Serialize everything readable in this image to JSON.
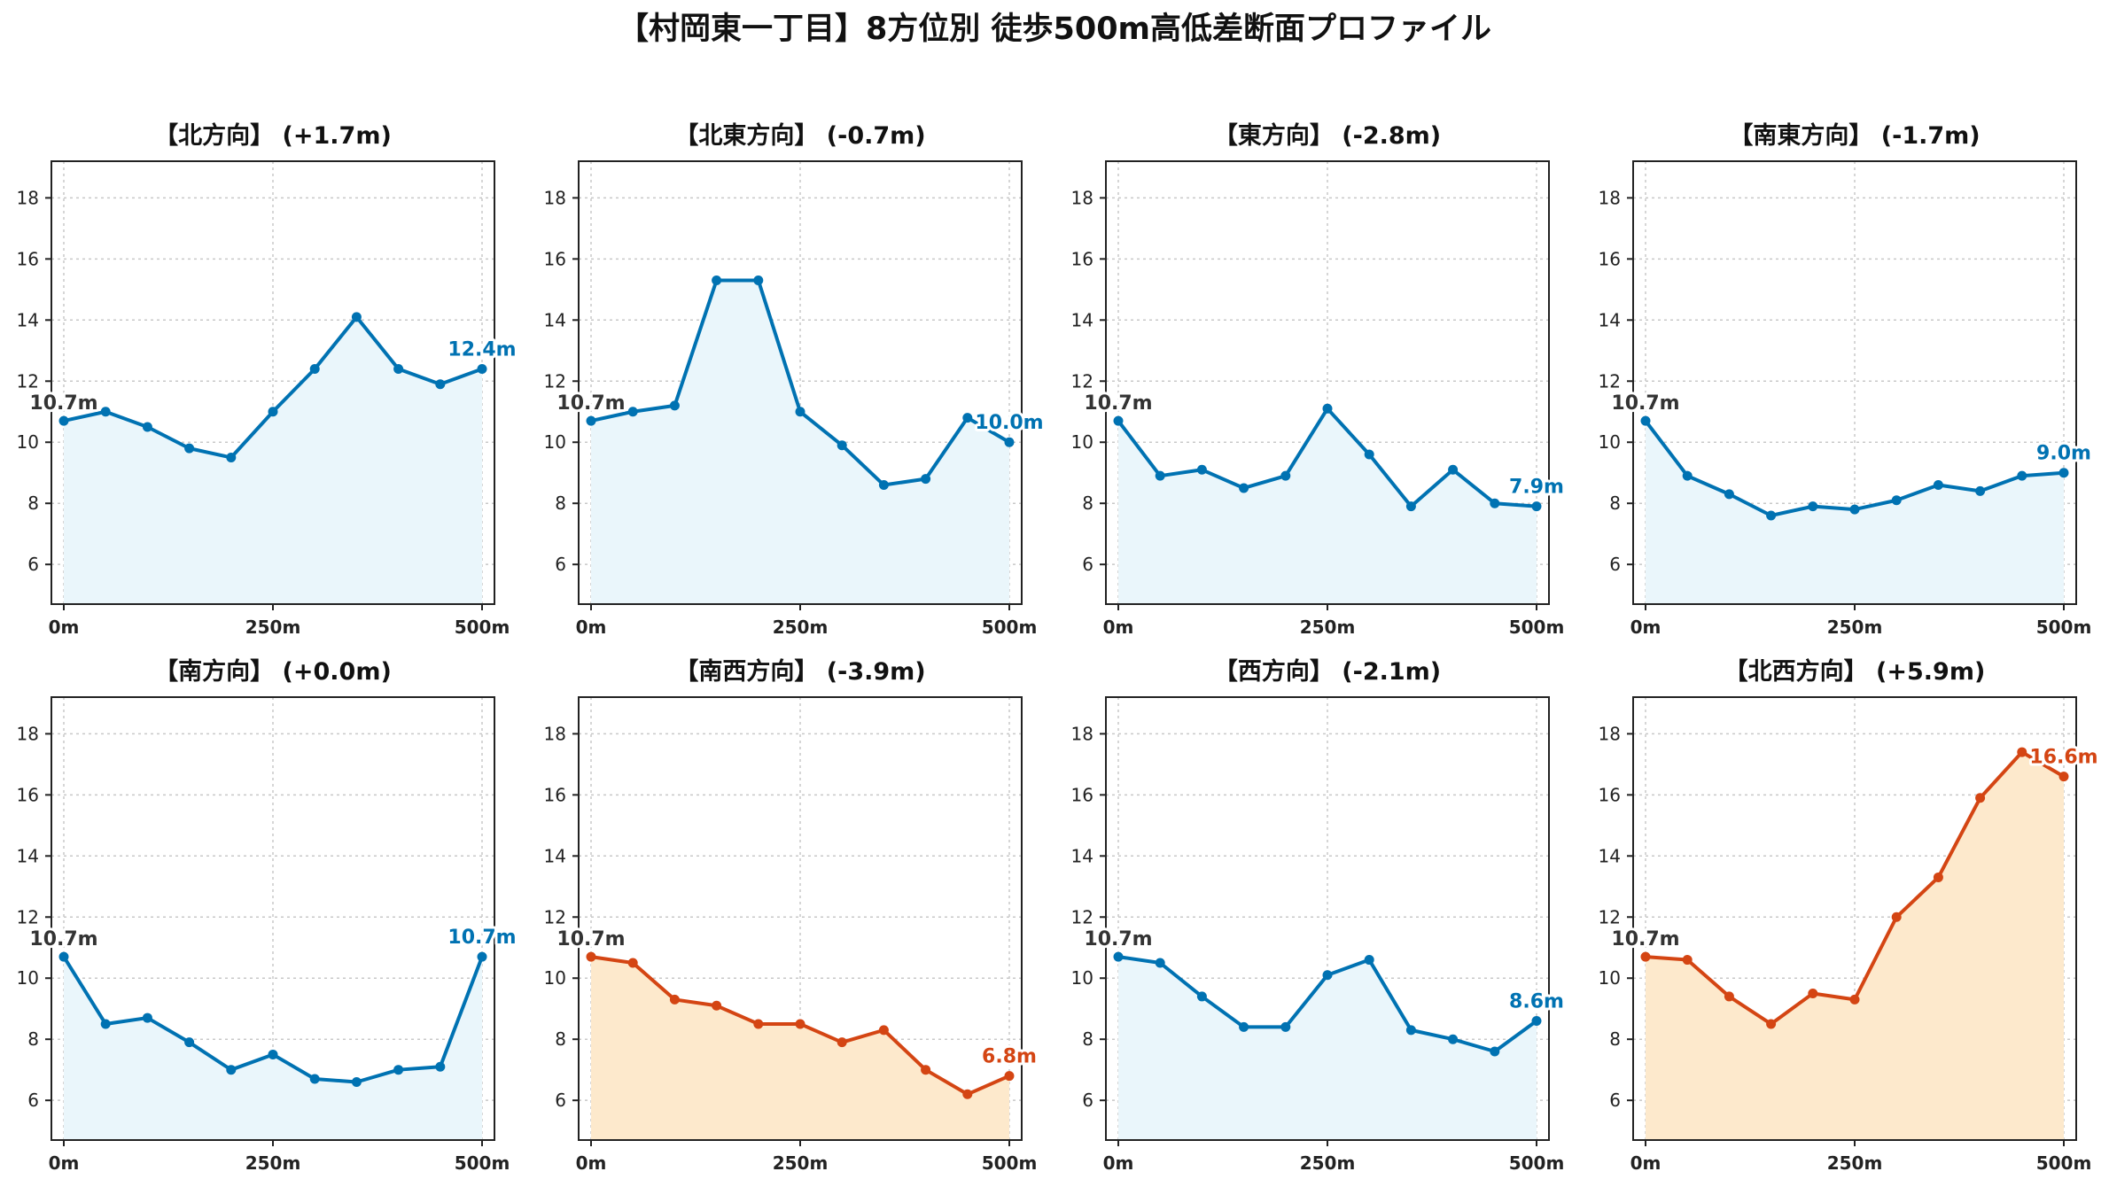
{
  "page": {
    "title": "【村岡東一丁目】8方位別 徒歩500m高低差断面プロファイル"
  },
  "colors": {
    "up": "#0072b2",
    "up_fill": "#eaf6fb",
    "down": "#d44513",
    "down_fill": "#fde9cc",
    "start_label": "#333333"
  },
  "chart_data": [
    {
      "type": "area",
      "title": "【北方向】 (+1.7m)",
      "x": [
        0,
        50,
        100,
        150,
        200,
        250,
        300,
        350,
        400,
        450,
        500
      ],
      "xtick_labels": [
        "0m",
        "250m",
        "500m"
      ],
      "xticks": [
        0,
        250,
        500
      ],
      "yticks": [
        6,
        8,
        10,
        12,
        14,
        16,
        18
      ],
      "ylim": [
        4.7,
        19.2
      ],
      "grid": true,
      "y": [
        10.7,
        11.0,
        10.5,
        9.8,
        9.5,
        11.0,
        12.4,
        14.1,
        12.4,
        11.9,
        12.4
      ],
      "start_label": "10.7m",
      "end_label": "12.4m",
      "color_scheme": "blue"
    },
    {
      "type": "area",
      "title": "【北東方向】 (-0.7m)",
      "x": [
        0,
        50,
        100,
        150,
        200,
        250,
        300,
        350,
        400,
        450,
        500
      ],
      "xtick_labels": [
        "0m",
        "250m",
        "500m"
      ],
      "xticks": [
        0,
        250,
        500
      ],
      "yticks": [
        6,
        8,
        10,
        12,
        14,
        16,
        18
      ],
      "ylim": [
        4.7,
        19.2
      ],
      "grid": true,
      "y": [
        10.7,
        11.0,
        11.2,
        15.3,
        15.3,
        11.0,
        9.9,
        8.6,
        8.8,
        10.8,
        10.0
      ],
      "start_label": "10.7m",
      "end_label": "10.0m",
      "color_scheme": "blue"
    },
    {
      "type": "area",
      "title": "【東方向】 (-2.8m)",
      "x": [
        0,
        50,
        100,
        150,
        200,
        250,
        300,
        350,
        400,
        450,
        500
      ],
      "xtick_labels": [
        "0m",
        "250m",
        "500m"
      ],
      "xticks": [
        0,
        250,
        500
      ],
      "yticks": [
        6,
        8,
        10,
        12,
        14,
        16,
        18
      ],
      "ylim": [
        4.7,
        19.2
      ],
      "grid": true,
      "y": [
        10.7,
        8.9,
        9.1,
        8.5,
        8.9,
        11.1,
        9.6,
        7.9,
        9.1,
        8.0,
        7.9
      ],
      "start_label": "10.7m",
      "end_label": "7.9m",
      "color_scheme": "blue"
    },
    {
      "type": "area",
      "title": "【南東方向】 (-1.7m)",
      "x": [
        0,
        50,
        100,
        150,
        200,
        250,
        300,
        350,
        400,
        450,
        500
      ],
      "xtick_labels": [
        "0m",
        "250m",
        "500m"
      ],
      "xticks": [
        0,
        250,
        500
      ],
      "yticks": [
        6,
        8,
        10,
        12,
        14,
        16,
        18
      ],
      "ylim": [
        4.7,
        19.2
      ],
      "grid": true,
      "y": [
        10.7,
        8.9,
        8.3,
        7.6,
        7.9,
        7.8,
        8.1,
        8.6,
        8.4,
        8.9,
        9.0
      ],
      "start_label": "10.7m",
      "end_label": "9.0m",
      "color_scheme": "blue"
    },
    {
      "type": "area",
      "title": "【南方向】 (+0.0m)",
      "x": [
        0,
        50,
        100,
        150,
        200,
        250,
        300,
        350,
        400,
        450,
        500
      ],
      "xtick_labels": [
        "0m",
        "250m",
        "500m"
      ],
      "xticks": [
        0,
        250,
        500
      ],
      "yticks": [
        6,
        8,
        10,
        12,
        14,
        16,
        18
      ],
      "ylim": [
        4.7,
        19.2
      ],
      "grid": true,
      "y": [
        10.7,
        8.5,
        8.7,
        7.9,
        7.0,
        7.5,
        6.7,
        6.6,
        7.0,
        7.1,
        10.7
      ],
      "start_label": "10.7m",
      "end_label": "10.7m",
      "color_scheme": "blue"
    },
    {
      "type": "area",
      "title": "【南西方向】 (-3.9m)",
      "x": [
        0,
        50,
        100,
        150,
        200,
        250,
        300,
        350,
        400,
        450,
        500
      ],
      "xtick_labels": [
        "0m",
        "250m",
        "500m"
      ],
      "xticks": [
        0,
        250,
        500
      ],
      "yticks": [
        6,
        8,
        10,
        12,
        14,
        16,
        18
      ],
      "ylim": [
        4.7,
        19.2
      ],
      "grid": true,
      "y": [
        10.7,
        10.5,
        9.3,
        9.1,
        8.5,
        8.5,
        7.9,
        8.3,
        7.0,
        6.2,
        6.8
      ],
      "start_label": "10.7m",
      "end_label": "6.8m",
      "color_scheme": "orange"
    },
    {
      "type": "area",
      "title": "【西方向】 (-2.1m)",
      "x": [
        0,
        50,
        100,
        150,
        200,
        250,
        300,
        350,
        400,
        450,
        500
      ],
      "xtick_labels": [
        "0m",
        "250m",
        "500m"
      ],
      "xticks": [
        0,
        250,
        500
      ],
      "yticks": [
        6,
        8,
        10,
        12,
        14,
        16,
        18
      ],
      "ylim": [
        4.7,
        19.2
      ],
      "grid": true,
      "y": [
        10.7,
        10.5,
        9.4,
        8.4,
        8.4,
        10.1,
        10.6,
        8.3,
        8.0,
        7.6,
        8.6
      ],
      "start_label": "10.7m",
      "end_label": "8.6m",
      "color_scheme": "blue"
    },
    {
      "type": "area",
      "title": "【北西方向】 (+5.9m)",
      "x": [
        0,
        50,
        100,
        150,
        200,
        250,
        300,
        350,
        400,
        450,
        500
      ],
      "xtick_labels": [
        "0m",
        "250m",
        "500m"
      ],
      "xticks": [
        0,
        250,
        500
      ],
      "yticks": [
        6,
        8,
        10,
        12,
        14,
        16,
        18
      ],
      "ylim": [
        4.7,
        19.2
      ],
      "grid": true,
      "y": [
        10.7,
        10.6,
        9.4,
        8.5,
        9.5,
        9.3,
        12.0,
        13.3,
        15.9,
        17.4,
        16.6
      ],
      "start_label": "10.7m",
      "end_label": "16.6m",
      "color_scheme": "orange"
    }
  ]
}
